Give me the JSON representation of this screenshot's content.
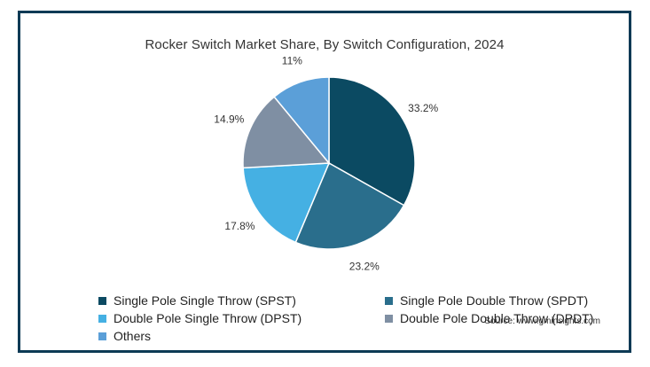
{
  "chart_data": {
    "type": "pie",
    "title": "Rocker Switch Market Share, By Switch Configuration, 2024",
    "slices": [
      {
        "name": "Single Pole Single Throw (SPST)",
        "value": 33.2,
        "label": "33.2%",
        "color": "#0b4a62"
      },
      {
        "name": "Single Pole Double Throw (SPDT)",
        "value": 23.2,
        "label": "23.2%",
        "color": "#2a6e8c"
      },
      {
        "name": "Double Pole Single Throw (DPST)",
        "value": 17.8,
        "label": "17.8%",
        "color": "#45b0e3"
      },
      {
        "name": "Double Pole Double Throw (DPDT)",
        "value": 14.9,
        "label": "14.9%",
        "color": "#7f8fa3"
      },
      {
        "name": "Others",
        "value": 11,
        "label": "11%",
        "color": "#5b9fd8"
      }
    ],
    "legend_placement": "bottom",
    "source": "Source: www.gminsights.com"
  }
}
